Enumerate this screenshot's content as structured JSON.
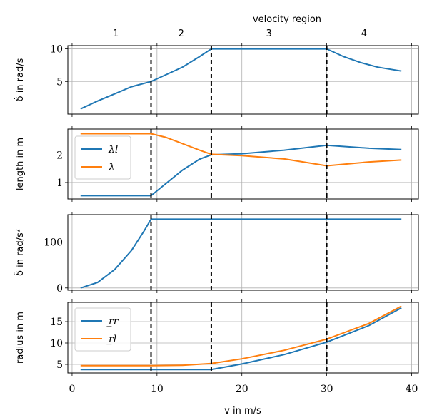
{
  "figure": {
    "xlabel": "v in m/s",
    "top_axis_label": "velocity region",
    "region_labels": [
      "1",
      "2",
      "3",
      "4"
    ],
    "xticks": [
      0,
      10,
      20,
      30,
      40
    ],
    "xlim": [
      -0.5,
      40.8
    ]
  },
  "colors": {
    "blue": "#1f77b4",
    "orange": "#ff7f0e",
    "grid": "#b0b0b0",
    "vline": "#000000"
  },
  "chart_data": [
    {
      "type": "line",
      "ylabel": "δ̇ in rad/s",
      "ylim": [
        0,
        10.5
      ],
      "yticks": [
        5,
        10
      ],
      "vlines": [
        9.3,
        16.4,
        30.0
      ],
      "series": [
        {
          "name": "",
          "color": "blue",
          "x": [
            1,
            3,
            5,
            7,
            9.3,
            11,
            13,
            15,
            16.4,
            20,
            25,
            30,
            32,
            34,
            36,
            38.8
          ],
          "y": [
            0.8,
            2.0,
            3.1,
            4.2,
            5.0,
            6.0,
            7.2,
            8.8,
            10,
            10,
            10,
            10,
            8.8,
            7.9,
            7.2,
            6.6
          ]
        }
      ]
    },
    {
      "type": "line",
      "ylabel": "length in m",
      "ylim": [
        0.4,
        2.95
      ],
      "yticks": [
        1,
        2
      ],
      "vlines": [
        9.3,
        16.4,
        30.0
      ],
      "legend": {
        "position": "left-middle"
      },
      "series": [
        {
          "name": "λl",
          "color": "blue",
          "x": [
            1,
            5,
            9.3,
            11,
            13,
            15,
            16.4,
            20,
            25,
            30,
            35,
            38.8
          ],
          "y": [
            0.52,
            0.52,
            0.52,
            0.95,
            1.45,
            1.85,
            2.01,
            2.05,
            2.18,
            2.36,
            2.25,
            2.2
          ]
        },
        {
          "name": "λ",
          "color": "orange",
          "x": [
            1,
            5,
            9.3,
            11,
            13,
            15,
            16.4,
            20,
            25,
            30,
            35,
            38.8
          ],
          "y": [
            2.78,
            2.78,
            2.78,
            2.65,
            2.42,
            2.18,
            2.03,
            1.98,
            1.86,
            1.61,
            1.75,
            1.82
          ]
        }
      ]
    },
    {
      "type": "line",
      "ylabel": "δ̈ in rad/s²",
      "ylim": [
        -5,
        160
      ],
      "yticks": [
        0,
        100
      ],
      "vlines": [
        9.3,
        16.4,
        30.0
      ],
      "series": [
        {
          "name": "",
          "color": "blue",
          "x": [
            1,
            3,
            5,
            7,
            8.5,
            9.3,
            12,
            16.4,
            20,
            25,
            30,
            35,
            38.8
          ],
          "y": [
            0,
            12,
            40,
            82,
            125,
            150,
            150,
            150,
            150,
            150,
            150,
            150,
            150
          ]
        }
      ]
    },
    {
      "type": "line",
      "ylabel": "radius in m",
      "ylim": [
        3.0,
        19.5
      ],
      "yticks": [
        5,
        10,
        15
      ],
      "vlines": [
        9.3,
        16.4,
        30.0
      ],
      "legend": {
        "position": "top-left"
      },
      "series": [
        {
          "name": "r̲r",
          "color": "blue",
          "x": [
            1,
            5,
            9.3,
            13,
            16.4,
            20,
            25,
            30,
            35,
            38.8
          ],
          "y": [
            3.8,
            3.8,
            3.8,
            3.8,
            3.8,
            5.1,
            7.3,
            10.2,
            14.1,
            18.2
          ]
        },
        {
          "name": "r̲l",
          "color": "orange",
          "x": [
            1,
            5,
            9.3,
            13,
            16.4,
            20,
            25,
            30,
            35,
            38.8
          ],
          "y": [
            4.7,
            4.7,
            4.7,
            4.8,
            5.2,
            6.3,
            8.3,
            10.9,
            14.6,
            18.6
          ]
        }
      ]
    }
  ]
}
